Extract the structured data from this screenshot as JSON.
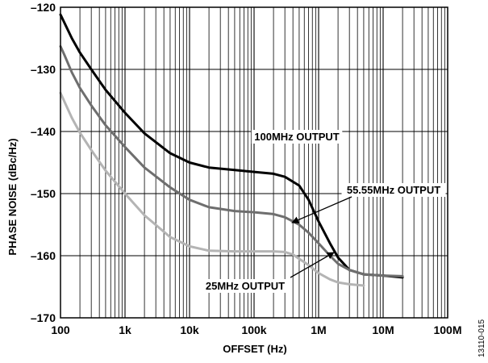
{
  "chart_data": {
    "type": "line",
    "xlabel": "OFFSET (Hz)",
    "ylabel": "PHASE NOISE (dBc/Hz)",
    "x_scale": "log",
    "xlim": [
      100,
      100000000
    ],
    "ylim": [
      -170,
      -120
    ],
    "grid": true,
    "x_ticks": [
      {
        "value": 100,
        "label": "100"
      },
      {
        "value": 1000,
        "label": "1k"
      },
      {
        "value": 10000,
        "label": "10k"
      },
      {
        "value": 100000,
        "label": "100k"
      },
      {
        "value": 1000000,
        "label": "1M"
      },
      {
        "value": 10000000,
        "label": "10M"
      },
      {
        "value": 100000000,
        "label": "100M"
      }
    ],
    "y_ticks": [
      {
        "value": -120,
        "label": "–120"
      },
      {
        "value": -130,
        "label": "–130"
      },
      {
        "value": -140,
        "label": "–140"
      },
      {
        "value": -150,
        "label": "–150"
      },
      {
        "value": -160,
        "label": "–160"
      },
      {
        "value": -170,
        "label": "–170"
      }
    ],
    "series": [
      {
        "name": "100MHz OUTPUT",
        "color": "#000000",
        "x": [
          100,
          115,
          150,
          200,
          300,
          500,
          1000,
          2000,
          5000,
          10000,
          20000,
          50000,
          100000,
          200000,
          300000,
          500000,
          700000,
          1000000,
          1500000,
          2000000,
          3000000,
          5000000,
          10000000,
          20000000
        ],
        "y": [
          -121.2,
          -122.5,
          -125.0,
          -127.3,
          -130.0,
          -133.3,
          -137.0,
          -140.3,
          -143.5,
          -145.0,
          -145.8,
          -146.2,
          -146.5,
          -146.8,
          -147.3,
          -148.7,
          -151.0,
          -154.5,
          -158.0,
          -160.3,
          -162.3,
          -163.0,
          -163.2,
          -163.5
        ]
      },
      {
        "name": "55.55MHz OUTPUT",
        "color": "#6e6e6e",
        "x": [
          100,
          115,
          150,
          200,
          300,
          500,
          1000,
          2000,
          5000,
          10000,
          20000,
          50000,
          100000,
          200000,
          300000,
          500000,
          700000,
          1000000,
          1500000,
          2000000,
          3000000,
          5000000,
          10000000,
          20000000
        ],
        "y": [
          -126.3,
          -127.7,
          -130.5,
          -133.0,
          -135.8,
          -139.0,
          -142.5,
          -145.8,
          -149.0,
          -151.0,
          -152.2,
          -152.8,
          -153.0,
          -153.3,
          -153.8,
          -155.0,
          -156.3,
          -158.0,
          -160.0,
          -161.3,
          -162.3,
          -163.0,
          -163.2,
          -163.3
        ]
      },
      {
        "name": "25MHz OUTPUT",
        "color": "#b4b4b4",
        "x": [
          100,
          115,
          150,
          200,
          300,
          500,
          1000,
          2000,
          5000,
          10000,
          20000,
          50000,
          100000,
          200000,
          300000,
          400000,
          500000,
          700000,
          1000000,
          1500000,
          2000000,
          3000000,
          5000000
        ],
        "y": [
          -133.8,
          -135.2,
          -137.8,
          -140.2,
          -143.0,
          -146.3,
          -150.0,
          -153.5,
          -157.0,
          -158.5,
          -159.2,
          -159.3,
          -159.3,
          -159.3,
          -159.4,
          -159.8,
          -160.5,
          -161.5,
          -162.8,
          -163.8,
          -164.3,
          -164.6,
          -164.8
        ]
      }
    ],
    "annotations": [
      {
        "text": "100MHz OUTPUT",
        "series": 0
      },
      {
        "text": "55.55MHz OUTPUT",
        "series": 1
      },
      {
        "text": "25MHz OUTPUT",
        "series": 2
      }
    ],
    "figure_id": "13110-015"
  }
}
